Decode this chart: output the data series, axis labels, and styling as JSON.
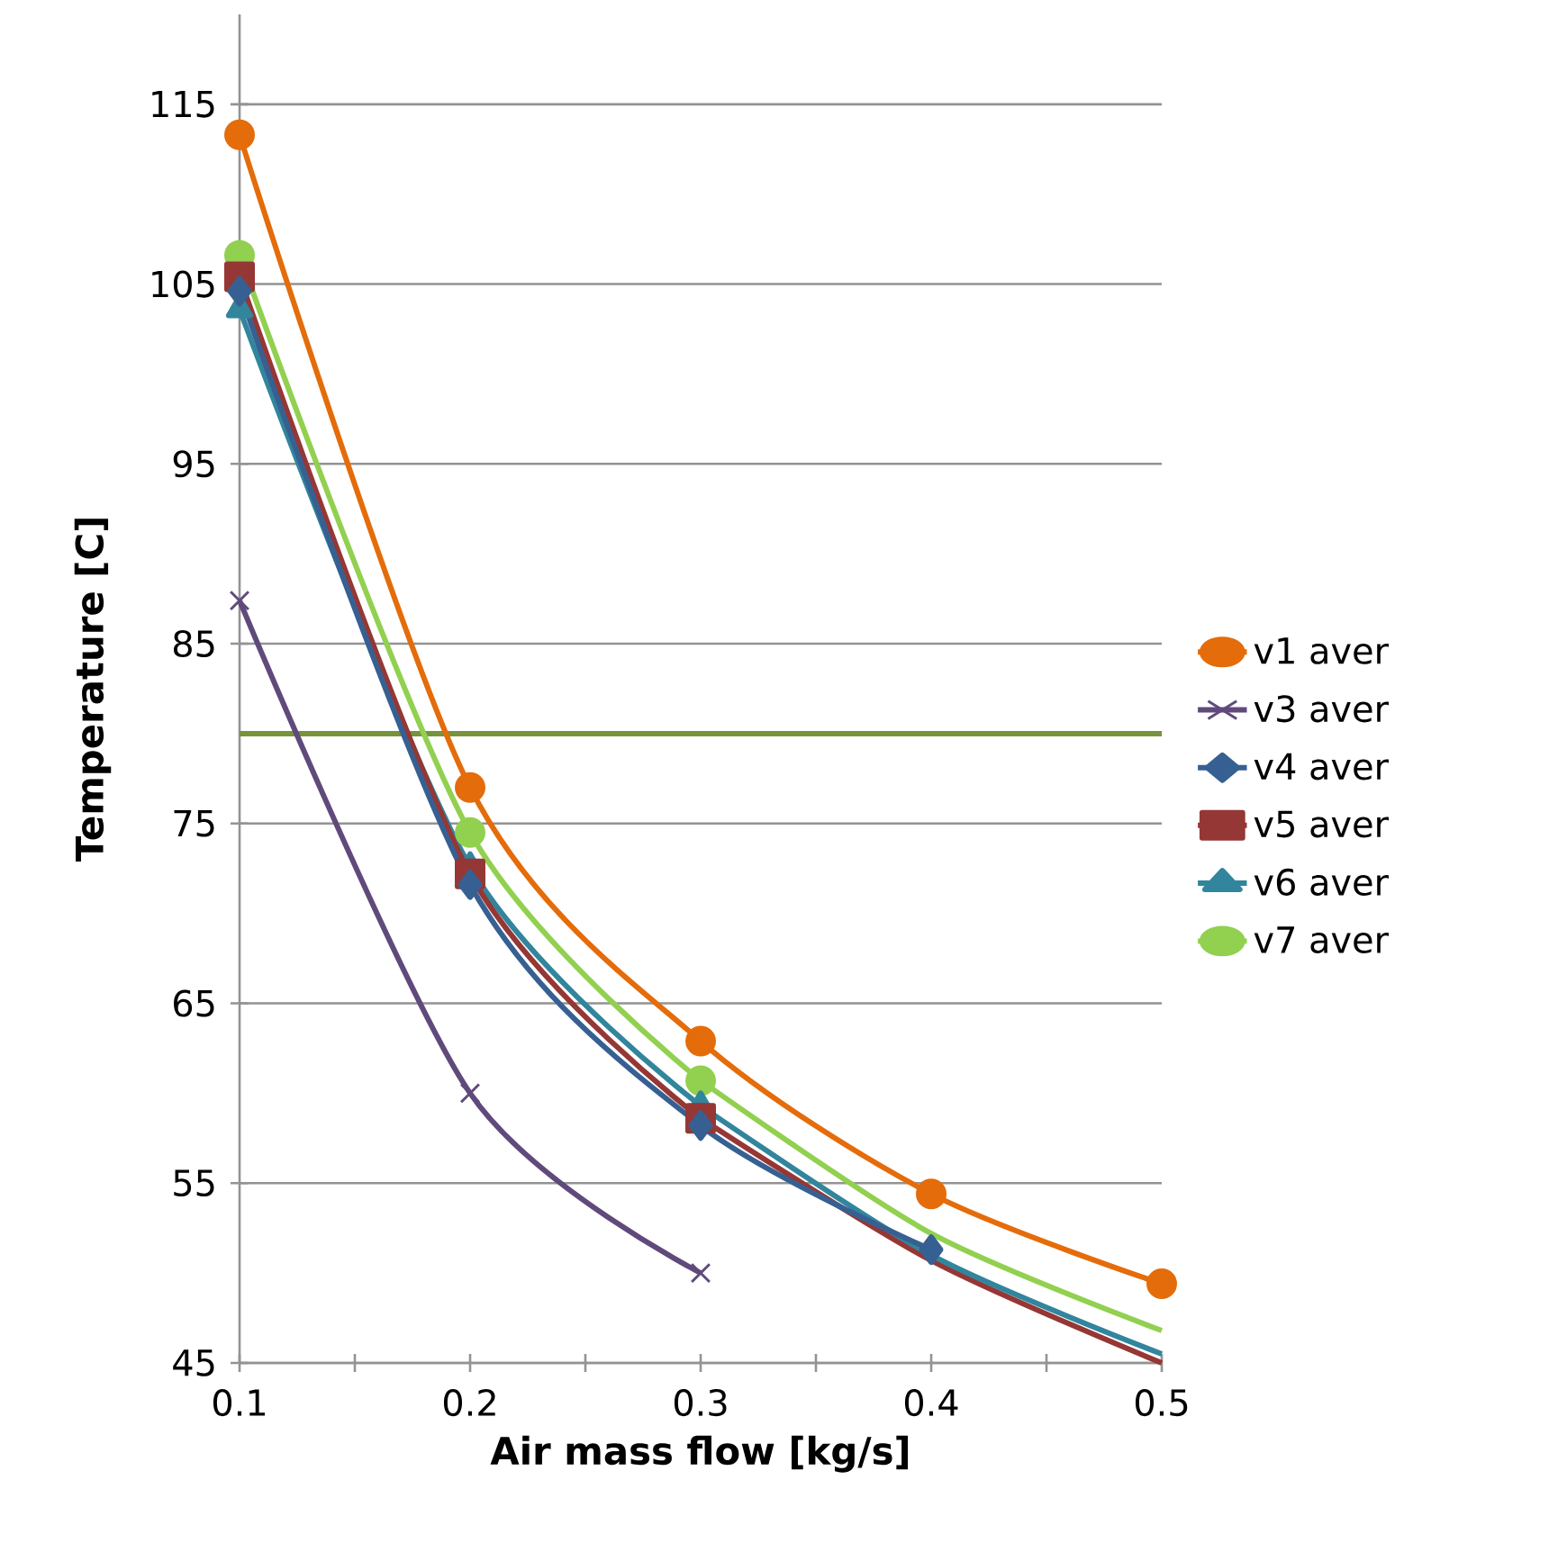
{
  "chart_data": {
    "type": "line",
    "xlabel": "Air mass flow [kg/s]",
    "ylabel": "Temperature [C]",
    "xlim": [
      0.1,
      0.5
    ],
    "ylim": [
      45,
      120
    ],
    "xticks": [
      0.1,
      {
        "value": 0.15,
        "label": null
      },
      0.2,
      {
        "value": 0.25,
        "label": null
      },
      0.3,
      {
        "value": 0.35,
        "label": null
      },
      0.4,
      {
        "value": 0.45,
        "label": null
      },
      0.5
    ],
    "yticks": [
      45,
      55,
      65,
      75,
      85,
      95,
      105,
      115
    ],
    "grid": "y",
    "legend": "right",
    "line_style": "solid",
    "ref_lines": [
      {
        "axis": "y",
        "value": 80,
        "color": "#77933c"
      }
    ],
    "series": [
      {
        "name": "v1 aver",
        "color": "#e46c0a",
        "marker": "circle",
        "x": [
          0.1,
          0.2,
          0.3,
          0.4,
          0.5
        ],
        "values": [
          113.3,
          77,
          62.9,
          54.4,
          49.4
        ]
      },
      {
        "name": "v3 aver",
        "color": "#604a7b",
        "marker": "cross",
        "x": [
          0.1,
          0.2,
          0.3
        ],
        "values": [
          87.4,
          60,
          50
        ]
      },
      {
        "name": "v4 aver",
        "color": "#376092",
        "marker": "diamond",
        "x": [
          0.1,
          0.2,
          0.3,
          0.4
        ],
        "values": [
          104.6,
          71.6,
          58.2,
          51.3
        ]
      },
      {
        "name": "v5 aver",
        "color": "#953735",
        "marker": "square",
        "x": [
          0.1,
          0.2,
          0.3
        ],
        "values": [
          105.4,
          72.2,
          58.6
        ]
      },
      {
        "name": "v6 aver",
        "color": "#31859c",
        "marker": "triangle",
        "x": [
          0.1,
          0.2,
          0.3
        ],
        "values": [
          103.6,
          72.6,
          59.3
        ]
      },
      {
        "name": "v7 aver",
        "color": "#92d050",
        "marker": "circle",
        "x": [
          0.1,
          0.2,
          0.3
        ],
        "values": [
          106.6,
          74.5,
          60.7
        ]
      },
      {
        "color": "#953735",
        "marker": "none",
        "x": [
          0.3,
          0.4,
          0.5
        ],
        "values": [
          58.6,
          50.7,
          45
        ]
      },
      {
        "color": "#31859c",
        "marker": "none",
        "x": [
          0.3,
          0.4,
          0.5
        ],
        "values": [
          59.3,
          51.0,
          45.5
        ]
      },
      {
        "color": "#92d050",
        "marker": "none",
        "x": [
          0.3,
          0.4,
          0.5
        ],
        "values": [
          60.7,
          52.2,
          46.8
        ]
      }
    ]
  }
}
